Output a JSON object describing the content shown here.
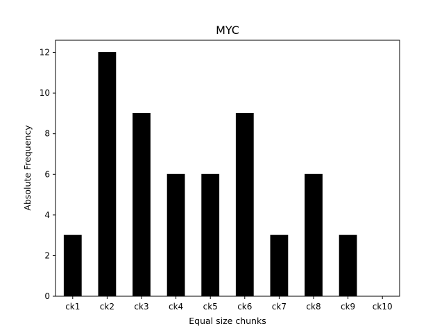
{
  "chart_data": {
    "type": "bar",
    "title": "MYC",
    "xlabel": "Equal size chunks",
    "ylabel": "Absolute Frequency",
    "categories": [
      "ck1",
      "ck2",
      "ck3",
      "ck4",
      "ck5",
      "ck6",
      "ck7",
      "ck8",
      "ck9",
      "ck10"
    ],
    "values": [
      3,
      12,
      9,
      6,
      6,
      9,
      3,
      6,
      3,
      0
    ],
    "ylim": [
      0,
      12.6
    ],
    "yticks": [
      0,
      2,
      4,
      6,
      8,
      10,
      12
    ],
    "grid": false,
    "bar_color": "#000000"
  }
}
